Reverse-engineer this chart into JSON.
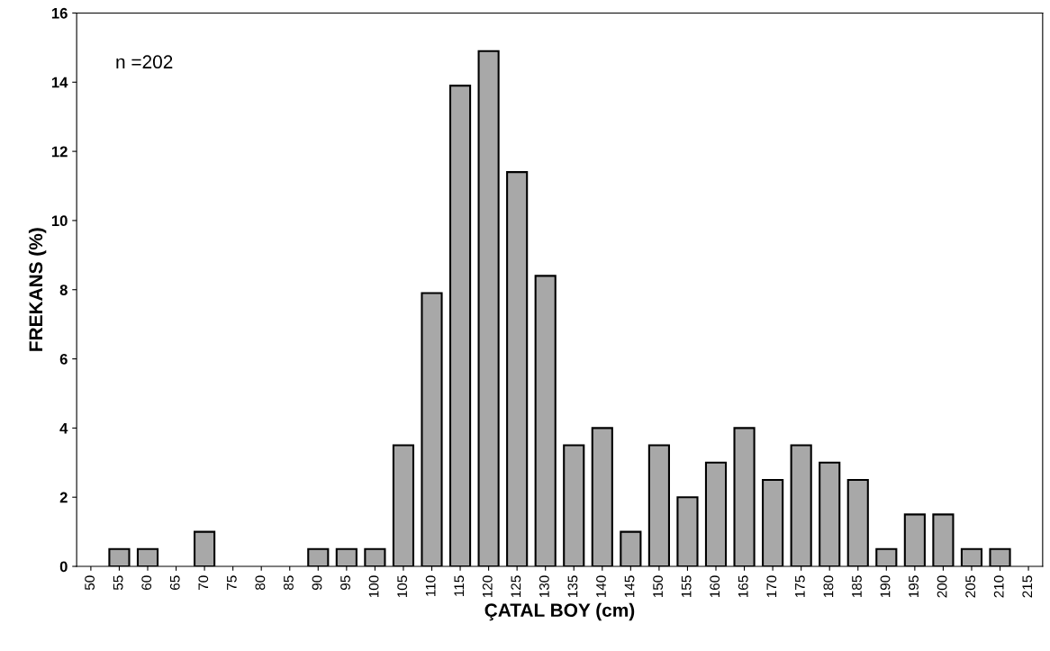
{
  "chart_data": {
    "type": "bar",
    "xlabel": "ÇATAL BOY (cm)",
    "ylabel": "FREKANS (%)",
    "categories": [
      "50",
      "55",
      "60",
      "65",
      "70",
      "75",
      "80",
      "85",
      "90",
      "95",
      "100",
      "105",
      "110",
      "115",
      "120",
      "125",
      "130",
      "135",
      "140",
      "145",
      "150",
      "155",
      "160",
      "165",
      "170",
      "175",
      "180",
      "185",
      "190",
      "195",
      "200",
      "205",
      "210",
      "215"
    ],
    "values": [
      0,
      0.5,
      0.5,
      0,
      1.0,
      0,
      0,
      0,
      0.5,
      0.5,
      0.5,
      3.5,
      7.9,
      13.9,
      14.9,
      11.4,
      8.4,
      3.5,
      4.0,
      1.0,
      3.5,
      2.0,
      3.0,
      4.0,
      2.5,
      3.5,
      3.0,
      2.5,
      0.5,
      1.5,
      1.5,
      0.5,
      0.5,
      0
    ],
    "color": "#a8a8a8",
    "ylim": [
      0,
      16
    ],
    "yticks": [
      0,
      2,
      4,
      6,
      8,
      10,
      12,
      14,
      16
    ],
    "grid": false,
    "annotations": [
      {
        "text": "n =202"
      }
    ]
  }
}
